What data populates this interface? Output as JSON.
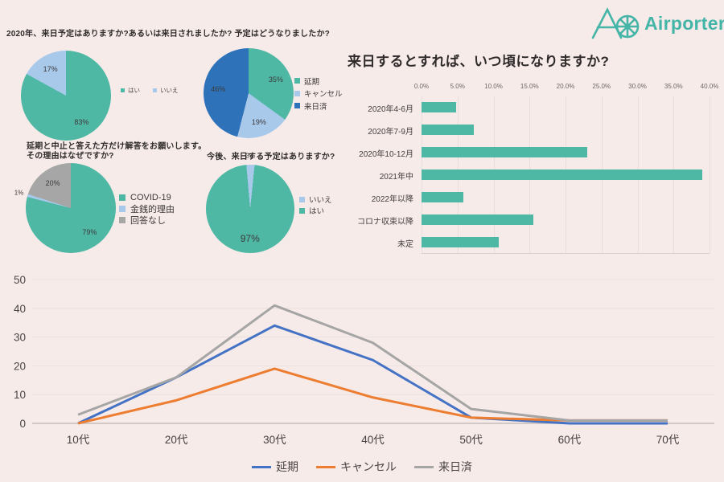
{
  "logo": {
    "text": "Airporter",
    "color": "#45b5a8"
  },
  "colors": {
    "background": "#f6ebe9",
    "teal": "#4fb8a5",
    "light_blue": "#a9c9eb",
    "dark_blue": "#2e73b9",
    "line_blue": "#4472c4",
    "line_orange": "#ed7d31",
    "line_gray": "#a5a5a5"
  },
  "chart_data": [
    {
      "id": "pie-2020-plans",
      "type": "pie",
      "title": "2020年、来日予定はありますか?あるいは来日されましたか? 予定はどうなりましたか?",
      "labels": [
        "はい",
        "いいえ"
      ],
      "values": [
        83,
        17
      ],
      "colors": [
        "#4fb8a5",
        "#a9c9eb"
      ],
      "start_angle": 0,
      "legend_position": "right-horizontal"
    },
    {
      "id": "pie-plan-outcome",
      "type": "pie",
      "title": "",
      "labels": [
        "延期",
        "キャンセル",
        "来日済"
      ],
      "values": [
        35,
        19,
        46
      ],
      "colors": [
        "#4fb8a5",
        "#a9c9eb",
        "#2e73b9"
      ],
      "start_angle": 0,
      "legend_position": "right-vertical"
    },
    {
      "id": "pie-cancel-reason",
      "type": "pie",
      "title": "延期と中止と答えた方だけ解答をお願いします。\nその理由はなぜですか?",
      "labels": [
        "COVID-19",
        "金銭的理由",
        "回答なし"
      ],
      "values": [
        79,
        1,
        20
      ],
      "colors": [
        "#4fb8a5",
        "#a9c9eb",
        "#a6a6a6"
      ],
      "start_angle": 0,
      "legend_position": "right-vertical"
    },
    {
      "id": "pie-future-plans",
      "type": "pie",
      "title": "今後、来日する予定はありますか?",
      "labels": [
        "いいえ",
        "はい"
      ],
      "values": [
        3,
        97
      ],
      "colors": [
        "#a9c9eb",
        "#4fb8a5"
      ],
      "start_angle": -5,
      "legend_position": "right-vertical"
    },
    {
      "id": "bar-when-visit",
      "type": "bar",
      "title": "来日するとすれば、いつ頃になりますか?",
      "categories": [
        "2020年4-6月",
        "2020年7-9月",
        "2020年10-12月",
        "2021年中",
        "2022年以降",
        "コロナ収束以降",
        "未定"
      ],
      "values": [
        4.8,
        7.3,
        23,
        39,
        5.8,
        15.5,
        10.7
      ],
      "x_ticks": [
        "0.0%",
        "5.0%",
        "10.0%",
        "15.0%",
        "20.0%",
        "25.0%",
        "30.0%",
        "35.0%",
        "40.0%"
      ],
      "xlim": [
        0,
        40
      ],
      "color": "#4fb8a5",
      "grid": true,
      "orientation": "horizontal"
    },
    {
      "id": "line-by-age",
      "type": "line",
      "title": "",
      "categories": [
        "10代",
        "20代",
        "30代",
        "40代",
        "50代",
        "60代",
        "70代"
      ],
      "series": [
        {
          "name": "延期",
          "color": "#4472c4",
          "values": [
            0,
            16,
            34,
            22,
            2,
            0,
            0
          ]
        },
        {
          "name": "キャンセル",
          "color": "#ed7d31",
          "values": [
            0,
            8,
            19,
            9,
            2,
            1,
            1
          ]
        },
        {
          "name": "来日済",
          "color": "#a5a5a5",
          "values": [
            3,
            16,
            41,
            28,
            5,
            1,
            1
          ]
        }
      ],
      "y_ticks": [
        0,
        10,
        20,
        30,
        40,
        50
      ],
      "ylim": [
        0,
        50
      ],
      "grid": true,
      "legend_position": "bottom-center"
    }
  ]
}
